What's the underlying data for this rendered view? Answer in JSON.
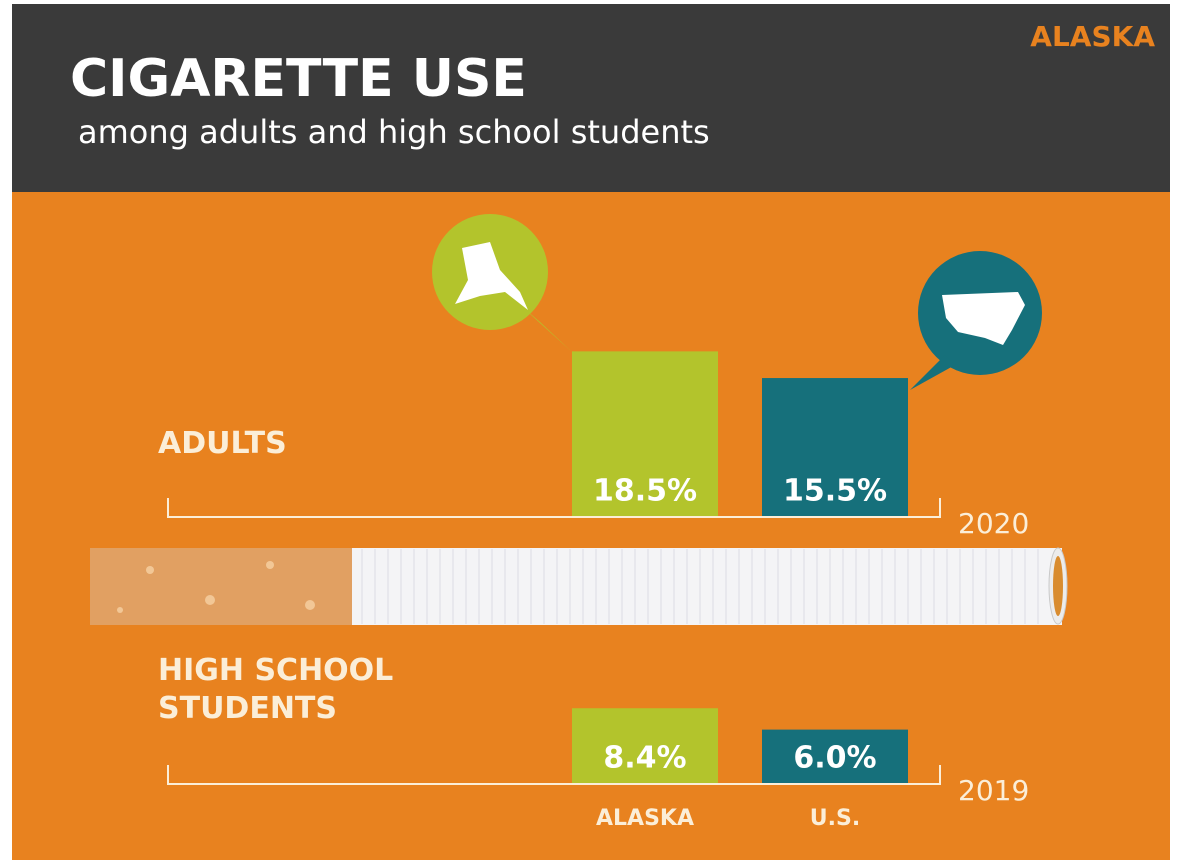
{
  "header": {
    "title": "CIGARETTE USE",
    "subtitle": "among adults and high school students",
    "state": "ALASKA"
  },
  "chart_data": [
    {
      "type": "bar",
      "title": "ADULTS",
      "year": "2020",
      "values": [
        18.5,
        15.5
      ],
      "value_labels": [
        "18.5%",
        "15.5%"
      ],
      "colors": [
        "#b3c42c",
        "#16707b"
      ]
    },
    {
      "type": "bar",
      "title": "HIGH SCHOOL STUDENTS",
      "year": "2019",
      "categories": [
        "ALASKA",
        "U.S."
      ],
      "values": [
        8.4,
        6.0
      ],
      "value_labels": [
        "8.4%",
        "6.0%"
      ],
      "colors": [
        "#b3c42c",
        "#16707b"
      ]
    }
  ]
}
